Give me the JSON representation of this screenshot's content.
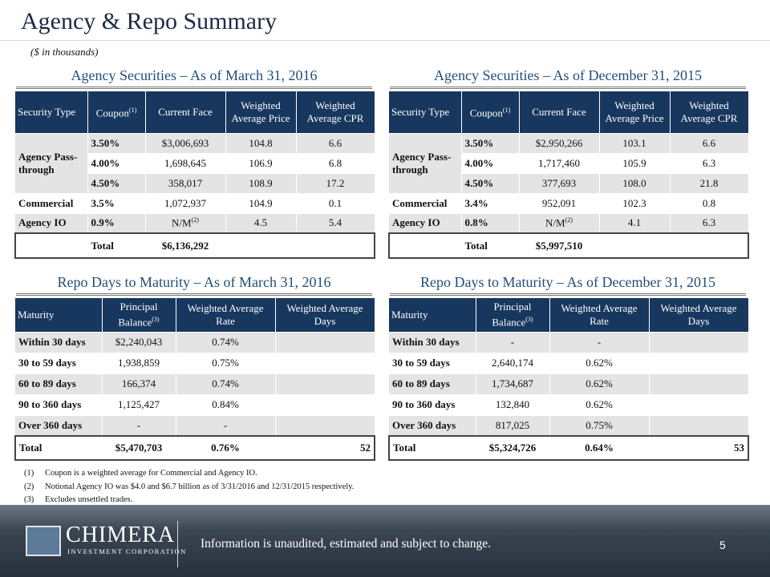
{
  "header": {
    "title": "Agency & Repo Summary",
    "subtitle": "($ in thousands)"
  },
  "agency_tables": [
    {
      "heading": "Agency Securities – As of March 31, 2016",
      "columns": [
        "Security Type",
        {
          "text": "Coupon",
          "sup": "(1)"
        },
        "Current Face",
        "Weighted Average Price",
        "Weighted Average CPR"
      ],
      "groups": [
        {
          "type": "Agency Pass-through",
          "lines": [
            [
              "3.50%",
              "$3,006,693",
              "104.8",
              "6.6"
            ],
            [
              "4.00%",
              "1,698,645",
              "106.9",
              "6.8"
            ],
            [
              "4.50%",
              "358,017",
              "108.9",
              "17.2"
            ]
          ]
        },
        {
          "type": "Commercial",
          "lines": [
            [
              "3.5%",
              "1,072,937",
              "104.9",
              "0.1"
            ]
          ]
        },
        {
          "type": "Agency IO",
          "lines": [
            [
              "0.9%",
              {
                "text": "N/M",
                "sup": "(2)"
              },
              "4.5",
              "5.4"
            ]
          ]
        }
      ],
      "total": {
        "label": "Total",
        "value": "$6,136,292"
      }
    },
    {
      "heading": "Agency Securities – As of December 31, 2015",
      "columns": [
        "Security Type",
        {
          "text": "Coupon",
          "sup": "(1)"
        },
        "Current Face",
        "Weighted Average Price",
        "Weighted Average CPR"
      ],
      "groups": [
        {
          "type": "Agency Pass-through",
          "lines": [
            [
              "3.50%",
              "$2,950,266",
              "103.1",
              "6.6"
            ],
            [
              "4.00%",
              "1,717,460",
              "105.9",
              "6.3"
            ],
            [
              "4.50%",
              "377,693",
              "108.0",
              "21.8"
            ]
          ]
        },
        {
          "type": "Commercial",
          "lines": [
            [
              "3.4%",
              "952,091",
              "102.3",
              "0.8"
            ]
          ]
        },
        {
          "type": "Agency IO",
          "lines": [
            [
              "0.8%",
              {
                "text": "N/M",
                "sup": "(2)"
              },
              "4.1",
              "6.3"
            ]
          ]
        }
      ],
      "total": {
        "label": "Total",
        "value": "$5,997,510"
      }
    }
  ],
  "repo_tables": [
    {
      "heading": "Repo Days to Maturity – As of March 31, 2016",
      "columns": [
        "Maturity",
        {
          "text": "Principal Balance",
          "sup": "(3)"
        },
        "Weighted Average Rate",
        "Weighted Average Days"
      ],
      "rows": [
        [
          "Within 30 days",
          "$2,240,043",
          "0.74%"
        ],
        [
          "30 to 59 days",
          "1,938,859",
          "0.75%"
        ],
        [
          "60 to 89 days",
          "166,374",
          "0.74%"
        ],
        [
          "90 to 360 days",
          "1,125,427",
          "0.84%"
        ],
        [
          "Over 360 days",
          "-",
          "-"
        ]
      ],
      "total": [
        "Total",
        "$5,470,703",
        "0.76%",
        "52"
      ]
    },
    {
      "heading": "Repo Days to Maturity – As of December 31, 2015",
      "columns": [
        "Maturity",
        {
          "text": "Principal Balance",
          "sup": "(3)"
        },
        "Weighted Average Rate",
        "Weighted Average Days"
      ],
      "rows": [
        [
          "Within 30 days",
          "-",
          "-"
        ],
        [
          "30 to 59 days",
          "2,640,174",
          "0.62%"
        ],
        [
          "60 to 89 days",
          "1,734,687",
          "0.62%"
        ],
        [
          "90 to 360 days",
          "132,840",
          "0.62%"
        ],
        [
          "Over 360 days",
          "817,025",
          "0.75%"
        ]
      ],
      "total": [
        "Total",
        "$5,324,726",
        "0.64%",
        "53"
      ]
    }
  ],
  "footnotes": [
    {
      "marker": "(1)",
      "text": "Coupon is a weighted average for Commercial and Agency IO."
    },
    {
      "marker": "(2)",
      "text": "Notional Agency IO was $4.0 and $6.7 billion as of 3/31/2016 and 12/31/2015 respectively."
    },
    {
      "marker": "(3)",
      "text": "Excludes unsettled trades."
    }
  ],
  "footer": {
    "company": "CHIMERA",
    "company_sub": "INVESTMENT CORPORATION",
    "disclaimer": "Information is unaudited, estimated and subject to change.",
    "page": "5"
  }
}
